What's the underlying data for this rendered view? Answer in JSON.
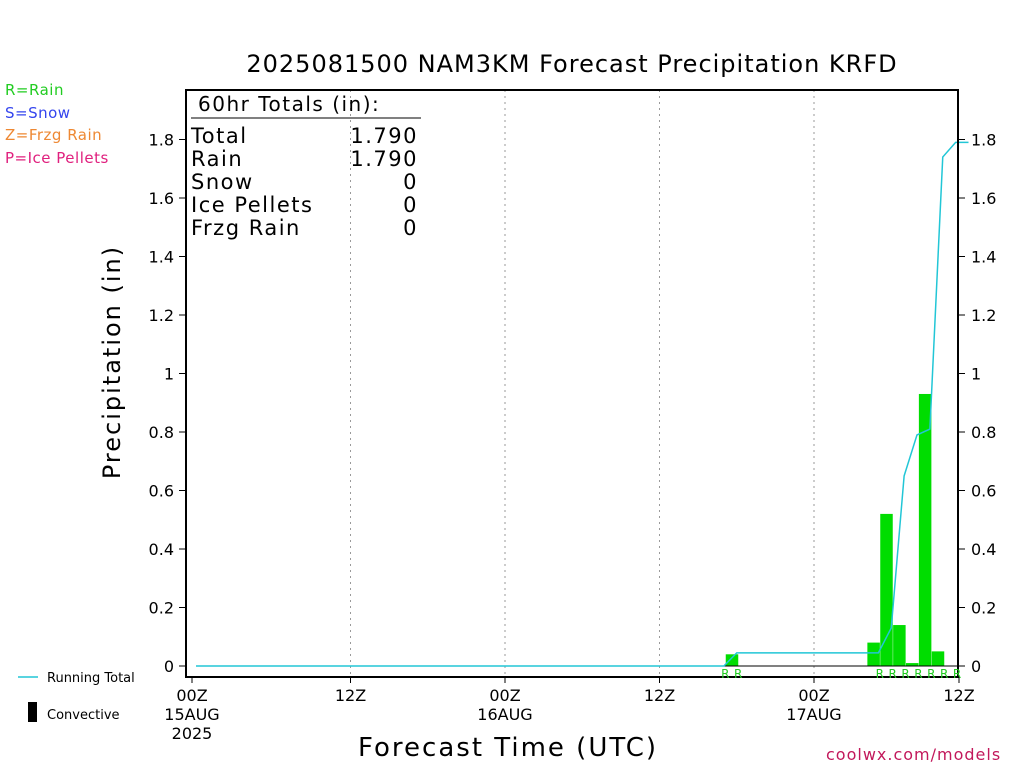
{
  "title": "2025081500 NAM3KM Forecast Precipitation KRFD",
  "type_legend": [
    {
      "label": "R=Rain",
      "color": "#22cc22"
    },
    {
      "label": "S=Snow",
      "color": "#3344ee"
    },
    {
      "label": "Z=Frzg Rain",
      "color": "#ee8833"
    },
    {
      "label": "P=Ice Pellets",
      "color": "#e0207e"
    }
  ],
  "totals": {
    "header": "60hr Totals (in):",
    "rows": [
      {
        "label": "Total",
        "value": "1.790"
      },
      {
        "label": "Rain",
        "value": "1.790"
      },
      {
        "label": "Snow",
        "value": "0"
      },
      {
        "label": "Ice Pellets",
        "value": "0"
      },
      {
        "label": "Frzg Rain",
        "value": "0"
      }
    ]
  },
  "bottom_legend": {
    "running_total": "Running Total",
    "convective": "Convective"
  },
  "credit": "coolwx.com/models",
  "colors": {
    "bar": "#00dd00",
    "running_total": "#22c6d6",
    "type_letter": "#22cc22"
  },
  "chart_data": {
    "type": "bar",
    "title": "2025081500 NAM3KM Forecast Precipitation KRFD",
    "xlabel": "Forecast Time (UTC)",
    "ylabel": "Precipitation (in)",
    "x_unit": "forecast hour",
    "xlim": [
      0,
      60
    ],
    "ylim": [
      0,
      1.9
    ],
    "y_ticks": [
      "0",
      "0.2",
      "0.4",
      "0.6",
      "0.8",
      "1",
      "1.2",
      "1.4",
      "1.6",
      "1.8"
    ],
    "x_ticks": [
      {
        "hour": 0,
        "label": "00Z",
        "sub1": "15AUG",
        "sub2": "2025"
      },
      {
        "hour": 12,
        "label": "12Z",
        "sub1": "",
        "sub2": ""
      },
      {
        "hour": 24,
        "label": "00Z",
        "sub1": "16AUG",
        "sub2": ""
      },
      {
        "hour": 36,
        "label": "12Z",
        "sub1": "",
        "sub2": ""
      },
      {
        "hour": 48,
        "label": "00Z",
        "sub1": "17AUG",
        "sub2": ""
      },
      {
        "hour": 60,
        "label": "12Z",
        "sub1": "",
        "sub2": ""
      }
    ],
    "grid": "vertical dotted at 12Z/00Z",
    "series": [
      {
        "name": "Hourly Precipitation",
        "kind": "bar",
        "hours": [
          42,
          53,
          54,
          55,
          56,
          57,
          58
        ],
        "values": [
          0.04,
          0.08,
          0.52,
          0.14,
          0.01,
          0.93,
          0.05
        ]
      },
      {
        "name": "Running Total",
        "kind": "line",
        "hours": [
          0,
          41,
          42,
          53,
          54,
          55,
          56,
          57,
          58,
          59,
          60
        ],
        "values": [
          0,
          0,
          0.045,
          0.045,
          0.13,
          0.65,
          0.79,
          0.81,
          1.74,
          1.79,
          1.79
        ]
      }
    ],
    "type_labels": {
      "hours": [
        41.5,
        42.5,
        53.5,
        54.5,
        55.5,
        56.5,
        57.5,
        58.5,
        59.5
      ],
      "letter": "R"
    }
  }
}
